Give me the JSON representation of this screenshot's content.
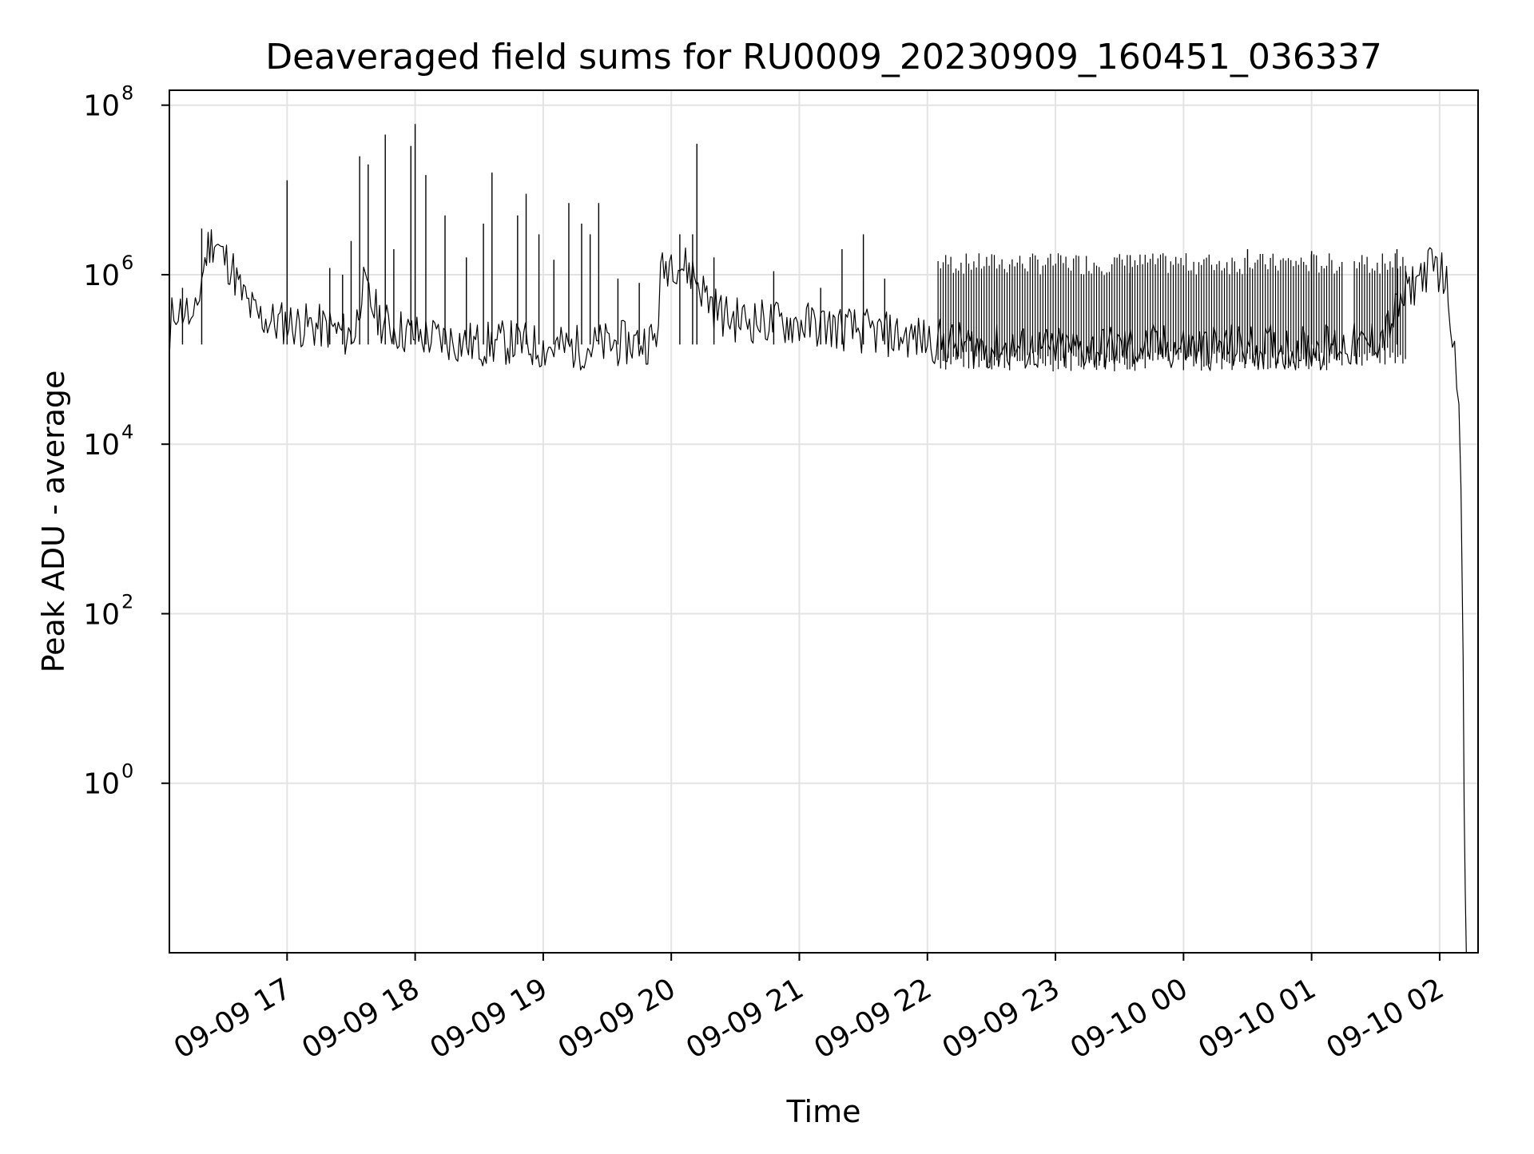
{
  "chart_data": {
    "type": "line",
    "title": "Deaveraged field sums for RU0009_20230909_160451_036337",
    "xlabel": "Time",
    "ylabel": "Peak ADU - average",
    "x_scale": "time",
    "y_scale": "log",
    "ylim": [
      0.01,
      150000000
    ],
    "xlim": [
      "2023-09-09T16:04:51",
      "2023-09-10T02:18:00"
    ],
    "grid": true,
    "legend": "none",
    "colors": {
      "series": "#000000",
      "grid": "#e3e3e3",
      "axes": "#000000",
      "background": "#ffffff"
    },
    "x_ticks": [
      {
        "time": "2023-09-09T17:00:00",
        "label": "09-09 17"
      },
      {
        "time": "2023-09-09T18:00:00",
        "label": "09-09 18"
      },
      {
        "time": "2023-09-09T19:00:00",
        "label": "09-09 19"
      },
      {
        "time": "2023-09-09T20:00:00",
        "label": "09-09 20"
      },
      {
        "time": "2023-09-09T21:00:00",
        "label": "09-09 21"
      },
      {
        "time": "2023-09-09T22:00:00",
        "label": "09-09 22"
      },
      {
        "time": "2023-09-09T23:00:00",
        "label": "09-09 23"
      },
      {
        "time": "2023-09-10T00:00:00",
        "label": "09-10 00"
      },
      {
        "time": "2023-09-10T01:00:00",
        "label": "09-10 01"
      },
      {
        "time": "2023-09-10T02:00:00",
        "label": "09-10 02"
      }
    ],
    "y_ticks": [
      {
        "value": 1,
        "base": "10",
        "exp": "0"
      },
      {
        "value": 100,
        "base": "10",
        "exp": "2"
      },
      {
        "value": 10000,
        "base": "10",
        "exp": "4"
      },
      {
        "value": 1000000,
        "base": "10",
        "exp": "6"
      },
      {
        "value": 100000000,
        "base": "10",
        "exp": "8"
      }
    ],
    "series": [
      {
        "x": [
          "2023-09-09T16:04:51",
          "2023-09-09T16:06",
          "2023-09-09T16:08",
          "2023-09-09T16:10",
          "2023-09-09T16:12",
          "2023-09-09T16:14",
          "2023-09-09T16:16",
          "2023-09-09T16:18",
          "2023-09-09T16:20",
          "2023-09-09T16:23",
          "2023-09-09T16:26",
          "2023-09-09T16:30",
          "2023-09-09T16:34",
          "2023-09-09T16:38",
          "2023-09-09T16:42",
          "2023-09-09T16:46",
          "2023-09-09T16:50",
          "2023-09-09T16:55",
          "2023-09-09T17:00",
          "2023-09-09T17:05",
          "2023-09-09T17:12",
          "2023-09-09T17:20",
          "2023-09-09T17:28",
          "2023-09-09T17:32",
          "2023-09-09T17:35",
          "2023-09-09T17:40",
          "2023-09-09T17:45",
          "2023-09-09T17:50",
          "2023-09-09T18:00",
          "2023-09-09T18:15",
          "2023-09-09T18:30",
          "2023-09-09T18:45",
          "2023-09-09T19:00",
          "2023-09-09T19:15",
          "2023-09-09T19:30",
          "2023-09-09T19:45",
          "2023-09-09T19:53",
          "2023-09-09T19:55",
          "2023-09-09T20:00",
          "2023-09-09T20:05",
          "2023-09-09T20:10",
          "2023-09-09T20:15",
          "2023-09-09T20:20",
          "2023-09-09T20:25",
          "2023-09-09T20:30",
          "2023-09-09T20:45",
          "2023-09-09T21:00",
          "2023-09-09T21:15",
          "2023-09-09T21:30",
          "2023-09-09T21:45",
          "2023-09-09T22:00",
          "2023-09-09T22:15",
          "2023-09-09T22:30",
          "2023-09-09T23:00",
          "2023-09-09T23:30",
          "2023-09-10T00:00",
          "2023-09-10T00:30",
          "2023-09-10T01:00",
          "2023-09-10T01:15",
          "2023-09-10T01:25",
          "2023-09-10T01:35",
          "2023-09-10T01:45",
          "2023-09-10T01:52",
          "2023-09-10T01:58",
          "2023-09-10T02:01",
          "2023-09-10T02:04",
          "2023-09-10T02:06",
          "2023-09-10T02:08",
          "2023-09-10T02:09",
          "2023-09-10T02:10",
          "2023-09-10T02:11",
          "2023-09-10T02:11:30",
          "2023-09-10T02:12",
          "2023-09-10T02:12:30"
        ],
        "y": [
          80000,
          300000,
          400000,
          350000,
          380000,
          300000,
          200000,
          400000,
          900000,
          2000000,
          2500000,
          1500000,
          1200000,
          600000,
          400000,
          300000,
          280000,
          250000,
          260000,
          240000,
          230000,
          220000,
          180000,
          200000,
          700000,
          400000,
          250000,
          220000,
          180000,
          160000,
          140000,
          150000,
          130000,
          130000,
          140000,
          150000,
          160000,
          900000,
          1500000,
          1200000,
          1000000,
          600000,
          400000,
          300000,
          280000,
          260000,
          250000,
          230000,
          200000,
          180000,
          160000,
          140000,
          130000,
          120000,
          130000,
          130000,
          130000,
          130000,
          140000,
          130000,
          200000,
          600000,
          1000000,
          1200000,
          1000000,
          600000,
          200000,
          80000,
          30000,
          3000,
          30,
          0.5,
          0.05,
          0.01
        ]
      }
    ],
    "spikes": [
      {
        "x": "2023-09-09T16:11",
        "y": 700000
      },
      {
        "x": "2023-09-09T16:20",
        "y": 3500000
      },
      {
        "x": "2023-09-09T17:00",
        "y": 13000000
      },
      {
        "x": "2023-09-09T17:20",
        "y": 1200000
      },
      {
        "x": "2023-09-09T17:30",
        "y": 2500000
      },
      {
        "x": "2023-09-09T17:26",
        "y": 1000000
      },
      {
        "x": "2023-09-09T17:34",
        "y": 25000000
      },
      {
        "x": "2023-09-09T17:38",
        "y": 20000000
      },
      {
        "x": "2023-09-09T17:46",
        "y": 45000000
      },
      {
        "x": "2023-09-09T17:50",
        "y": 2000000
      },
      {
        "x": "2023-09-09T17:58",
        "y": 33000000
      },
      {
        "x": "2023-09-09T18:00",
        "y": 60000000
      },
      {
        "x": "2023-09-09T18:05",
        "y": 15000000
      },
      {
        "x": "2023-09-09T18:14",
        "y": 5000000
      },
      {
        "x": "2023-09-09T18:24",
        "y": 1600000
      },
      {
        "x": "2023-09-09T18:32",
        "y": 4000000
      },
      {
        "x": "2023-09-09T18:36",
        "y": 16000000
      },
      {
        "x": "2023-09-09T18:48",
        "y": 5000000
      },
      {
        "x": "2023-09-09T18:52",
        "y": 9000000
      },
      {
        "x": "2023-09-09T18:58",
        "y": 3000000
      },
      {
        "x": "2023-09-09T19:05",
        "y": 1500000
      },
      {
        "x": "2023-09-09T19:12",
        "y": 7000000
      },
      {
        "x": "2023-09-09T19:18",
        "y": 4000000
      },
      {
        "x": "2023-09-09T19:22",
        "y": 3000000
      },
      {
        "x": "2023-09-09T19:26",
        "y": 7000000
      },
      {
        "x": "2023-09-09T19:35",
        "y": 900000
      },
      {
        "x": "2023-09-09T19:45",
        "y": 800000
      },
      {
        "x": "2023-09-09T20:04",
        "y": 3000000
      },
      {
        "x": "2023-09-09T20:10",
        "y": 3000000
      },
      {
        "x": "2023-09-09T20:12",
        "y": 35000000
      },
      {
        "x": "2023-09-09T20:20",
        "y": 1600000
      },
      {
        "x": "2023-09-09T20:48",
        "y": 1100000
      },
      {
        "x": "2023-09-09T21:10",
        "y": 700000
      },
      {
        "x": "2023-09-09T21:20",
        "y": 2000000
      },
      {
        "x": "2023-09-09T21:30",
        "y": 3000000
      },
      {
        "x": "2023-09-09T21:40",
        "y": 900000
      },
      {
        "x": "2023-09-09T23:35",
        "y": 1700000
      },
      {
        "x": "2023-09-10T00:30",
        "y": 2000000
      },
      {
        "x": "2023-09-10T01:00",
        "y": 1900000
      },
      {
        "x": "2023-09-10T01:40",
        "y": 2000000
      }
    ],
    "dense_regions": [
      {
        "from": "2023-09-09T22:05",
        "to": "2023-09-10T01:15",
        "low": 90000,
        "high": 1800000
      },
      {
        "from": "2023-09-10T01:20",
        "to": "2023-09-10T01:45",
        "low": 100000,
        "high": 1800000
      }
    ]
  }
}
